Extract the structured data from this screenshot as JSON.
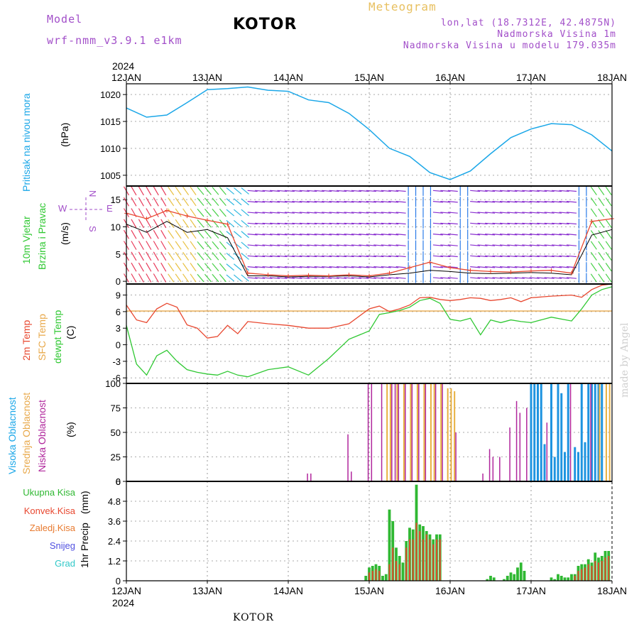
{
  "header": {
    "model_label": "Model",
    "model_run": "wrf-nmm_v3.9.1 e1km",
    "station": "KOTOR",
    "meteogram": "Meteogram",
    "lonlat": "lon,lat (18.7312E, 42.4875N)",
    "elevation": "Nadmorska Visina 1m",
    "elevation_model": "Nadmorska Visina u modelu 179.035m"
  },
  "footer": {
    "station": "KOTOR",
    "credit": "made by Angel"
  },
  "time_axis": {
    "year": "2024",
    "labels": [
      "12JAN",
      "13JAN",
      "14JAN",
      "15JAN",
      "16JAN",
      "17JAN",
      "18JAN"
    ]
  },
  "colors": {
    "pressure": "#1ba7e8",
    "wind_speed_line": "#e8472f",
    "wind_gust_line": "#000000",
    "temp_2m": "#e8472f",
    "temp_sfc": "#e8a84a",
    "dewpoint": "#2fc832",
    "cloud_high": "#1e94e0",
    "cloud_mid": "#e8b040",
    "cloud_low": "#b0279c",
    "precip_total": "#2fb832",
    "precip_conv": "#e8472f",
    "precip_frozen": "#e87a2f",
    "snow": "#5050e0",
    "grad": "#30c8c8"
  },
  "panels": {
    "pressure": {
      "label": "Pritisak na nivou mora",
      "unit": "(hPa)"
    },
    "wind": {
      "label1": "10m Vjetar",
      "label2": "Brzina i Pravac",
      "unit": "(m/s)",
      "compass_n": "N",
      "compass_s": "S",
      "compass_w": "W",
      "compass_e": "E"
    },
    "temp": {
      "label_2m": "2m Temp",
      "label_sfc": "SFC Temp",
      "label_dew": "dewpt Temp",
      "unit": "(C)"
    },
    "cloud": {
      "label_high": "Visoka Oblacnost",
      "label_mid": "Srednja Oblacnost",
      "label_low": "Niska Oblacnost",
      "unit": "(%)"
    },
    "precip": {
      "label": "1hr Precip",
      "unit": "(mm)",
      "legend": [
        "Ukupna Kisa",
        "Konvek.Kisa",
        "Zaledj.Kisa",
        "Snijeg",
        "Grad"
      ]
    }
  },
  "chart_data": [
    {
      "type": "line",
      "id": "pressure",
      "ylim": [
        1003,
        1022
      ],
      "yticks": [
        "1005",
        "1010",
        "1015",
        "1020"
      ],
      "x_hours": [
        0,
        6,
        12,
        18,
        24,
        30,
        36,
        42,
        48,
        54,
        60,
        66,
        72,
        78,
        84,
        90,
        96,
        102,
        108,
        114,
        120,
        126,
        132,
        138,
        144
      ],
      "series": [
        {
          "values": [
            1017.5,
            1015.8,
            1016.2,
            1018.5,
            1020.9,
            1021.1,
            1021.4,
            1020.8,
            1020.6,
            1019.0,
            1018.5,
            1016.5,
            1013.5,
            1010.0,
            1008.5,
            1005.5,
            1004.2,
            1005.8,
            1009.0,
            1012.0,
            1013.6,
            1014.6,
            1014.4,
            1012.5,
            1009.5
          ]
        }
      ]
    },
    {
      "type": "line",
      "id": "wind",
      "ylim": [
        -0.5,
        17.5
      ],
      "yticks": [
        "0",
        "5",
        "10",
        "15"
      ],
      "x_hours": [
        0,
        6,
        12,
        18,
        24,
        30,
        36,
        42,
        48,
        54,
        60,
        66,
        72,
        78,
        84,
        90,
        96,
        102,
        108,
        114,
        120,
        126,
        132,
        138,
        144
      ],
      "series": [
        {
          "values": [
            12.5,
            11.5,
            13.0,
            12.0,
            11.2,
            10.5,
            1.5,
            1.2,
            1.0,
            1.1,
            1.0,
            1.2,
            1.0,
            1.5,
            2.5,
            3.5,
            2.5,
            2.0,
            1.8,
            1.7,
            1.9,
            2.0,
            1.5,
            11.0,
            11.5
          ]
        },
        {
          "values": [
            10.5,
            9.0,
            11.0,
            9.0,
            9.5,
            8.0,
            1.0,
            1.0,
            0.8,
            0.9,
            0.9,
            1.0,
            0.8,
            1.2,
            1.5,
            2.0,
            1.8,
            1.5,
            1.4,
            1.5,
            1.6,
            1.5,
            1.2,
            8.5,
            9.5
          ]
        }
      ]
    },
    {
      "type": "line",
      "id": "temp",
      "ylim": [
        -7,
        11
      ],
      "yticks": [
        "-6",
        "-3",
        "0",
        "3",
        "6",
        "9"
      ],
      "x_hours": [
        0,
        3,
        6,
        9,
        12,
        15,
        18,
        21,
        24,
        27,
        30,
        33,
        36,
        42,
        48,
        54,
        60,
        66,
        72,
        75,
        78,
        81,
        84,
        87,
        90,
        93,
        96,
        99,
        102,
        105,
        108,
        111,
        114,
        117,
        120,
        126,
        132,
        135,
        138,
        141,
        144
      ],
      "series": [
        {
          "values": [
            7.2,
            4.5,
            4.0,
            6.5,
            7.5,
            6.8,
            3.6,
            3.0,
            1.2,
            1.5,
            3.5,
            2.0,
            4.2,
            3.8,
            3.5,
            3.0,
            3.0,
            3.8,
            6.5,
            7.0,
            6.0,
            6.5,
            7.2,
            8.5,
            8.6,
            8.2,
            8.0,
            8.2,
            8.5,
            8.4,
            8.0,
            8.2,
            8.5,
            7.8,
            8.5,
            8.8,
            9.0,
            8.6,
            10.0,
            10.8,
            11.0
          ]
        },
        {
          "values": [
            6.1,
            6.1,
            6.1,
            6.1,
            6.1,
            6.1,
            6.1,
            6.1,
            6.1,
            6.1,
            6.1,
            6.1,
            6.1,
            6.1,
            6.1,
            6.1,
            6.1,
            6.1,
            6.1,
            6.1,
            6.1,
            6.1,
            6.1,
            6.1,
            6.1,
            6.1,
            6.1,
            6.1,
            6.1,
            6.1,
            6.1,
            6.1,
            6.1,
            6.1,
            6.1,
            6.1,
            6.1,
            6.1,
            6.1,
            6.1,
            6.1
          ]
        },
        {
          "values": [
            3.5,
            -3.5,
            -5.5,
            -2.0,
            -1.0,
            -3.0,
            -4.5,
            -5.0,
            -5.3,
            -5.5,
            -4.8,
            -5.5,
            -5.8,
            -4.5,
            -4.0,
            -5.5,
            -2.5,
            1.0,
            2.5,
            5.5,
            5.8,
            6.2,
            6.8,
            8.0,
            8.4,
            7.5,
            4.6,
            4.3,
            4.8,
            1.8,
            4.5,
            4.0,
            4.5,
            4.2,
            4.0,
            5.0,
            4.3,
            6.5,
            9.0,
            10.0,
            10.5
          ]
        }
      ]
    },
    {
      "type": "bar",
      "id": "cloud",
      "ylim": [
        0,
        100
      ],
      "yticks": [
        "0",
        "25",
        "50",
        "75",
        "100"
      ],
      "series": [
        {
          "name": "Visoka Oblacnost",
          "hours": [
            120,
            121,
            122,
            123,
            124,
            126,
            127,
            128,
            129,
            130,
            131,
            133,
            134,
            135,
            136,
            137,
            138,
            139,
            140,
            141
          ],
          "values": [
            100,
            100,
            100,
            100,
            38,
            100,
            25,
            100,
            90,
            30,
            100,
            35,
            30,
            100,
            40,
            100,
            100,
            100,
            100,
            100
          ]
        },
        {
          "name": "Srednja Oblacnost",
          "hours": [
            77,
            78,
            80,
            82,
            84,
            86,
            88,
            90,
            91,
            93,
            95,
            96,
            97,
            140,
            142,
            143
          ],
          "values": [
            100,
            100,
            100,
            100,
            100,
            100,
            100,
            100,
            100,
            100,
            95,
            95,
            92,
            100,
            100,
            100
          ]
        },
        {
          "name": "Niska Oblacnost",
          "hours": [
            54,
            55,
            66,
            67,
            72,
            73,
            76,
            79,
            80,
            81,
            83,
            85,
            87,
            89,
            92,
            94,
            98,
            106,
            108,
            109,
            111,
            114,
            116,
            117,
            119,
            125,
            132,
            138
          ],
          "values": [
            8,
            8,
            48,
            10,
            100,
            100,
            100,
            100,
            100,
            100,
            100,
            100,
            100,
            100,
            100,
            100,
            50,
            8,
            33,
            25,
            25,
            55,
            82,
            70,
            75,
            60,
            100,
            100
          ]
        }
      ]
    },
    {
      "type": "bar",
      "id": "precip",
      "ylim": [
        0,
        6
      ],
      "yticks": [
        "0",
        "1.2",
        "2.4",
        "3.6",
        "4.8",
        "6"
      ],
      "series": [
        {
          "name": "Ukupna Kisa",
          "hours": [
            71,
            72,
            73,
            74,
            75,
            76,
            77,
            78,
            79,
            80,
            81,
            82,
            83,
            84,
            85,
            86,
            87,
            88,
            89,
            90,
            91,
            92,
            93,
            107,
            108,
            109,
            112,
            113,
            114,
            115,
            116,
            117,
            118,
            126,
            127,
            128,
            129,
            130,
            131,
            132,
            133,
            134,
            135,
            136,
            137,
            138,
            139,
            140,
            141,
            142,
            143
          ],
          "values": [
            0.3,
            0.8,
            0.9,
            1.0,
            0.9,
            0.3,
            0.4,
            4.3,
            3.6,
            2.0,
            1.5,
            1.1,
            2.4,
            3.2,
            3.1,
            5.8,
            3.4,
            3.3,
            3.0,
            2.8,
            2.5,
            2.8,
            2.8,
            0.1,
            0.3,
            0.2,
            0.1,
            0.3,
            0.5,
            0.4,
            0.8,
            1.1,
            0.6,
            0.2,
            0.1,
            0.4,
            0.3,
            0.2,
            0.2,
            0.4,
            0.4,
            0.9,
            1.0,
            1.0,
            1.3,
            1.1,
            1.7,
            1.4,
            1.5,
            1.8,
            1.8
          ]
        },
        {
          "name": "Konvek.Kisa",
          "hours": [
            72,
            73,
            74,
            75,
            78,
            79,
            80,
            81,
            83,
            84,
            85,
            86,
            87,
            88,
            89,
            90,
            91,
            92,
            93,
            133,
            134,
            135,
            136,
            137,
            138,
            139,
            140,
            141,
            142,
            143
          ],
          "values": [
            0.5,
            0.6,
            0.7,
            0.6,
            1.0,
            2.0,
            1.2,
            1.0,
            2.0,
            2.5,
            2.5,
            3.5,
            3.0,
            2.5,
            2.8,
            2.5,
            2.2,
            2.5,
            2.5,
            0.3,
            0.6,
            0.7,
            0.8,
            1.0,
            0.9,
            1.2,
            1.1,
            1.2,
            1.4,
            1.5
          ]
        }
      ]
    }
  ]
}
